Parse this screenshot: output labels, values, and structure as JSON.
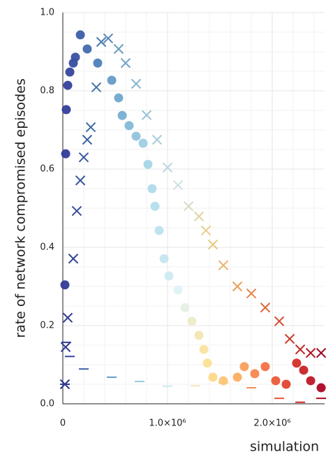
{
  "chart_data": {
    "type": "scatter",
    "ylabel": "rate of network compromised episodes",
    "xlabel": "simulation",
    "xlim": [
      0,
      2500000
    ],
    "ylim": [
      0,
      1
    ],
    "xticks": [
      0,
      {
        "value": 1000000,
        "label": "1.0×10⁶"
      },
      {
        "value": 2000000,
        "label": "2.0×10⁶"
      }
    ],
    "yticks": [
      {
        "value": 0,
        "label": "0.0"
      },
      0.2,
      0.4,
      0.6,
      0.8,
      {
        "value": 1,
        "label": "1.0"
      }
    ],
    "grid": true,
    "colormap": "RdYlBu_r",
    "series": [
      {
        "marker": "circle",
        "x": [
          20000,
          27000,
          33000,
          47000,
          67000,
          100000,
          120000,
          167000,
          233000,
          333000,
          467000,
          533000,
          567000,
          633000,
          700000,
          767000,
          813000,
          853000,
          880000,
          920000,
          967000,
          1013000,
          1100000,
          1167000,
          1233000,
          1300000,
          1347000,
          1380000,
          1433000,
          1533000,
          1667000,
          1733000,
          1833000,
          1933000,
          2033000,
          2133000,
          2233000,
          2300000,
          2367000,
          2467000
        ],
        "values": [
          0.304,
          0.639,
          0.752,
          0.814,
          0.848,
          0.871,
          0.886,
          0.943,
          0.907,
          0.871,
          0.827,
          0.782,
          0.737,
          0.711,
          0.684,
          0.666,
          0.612,
          0.55,
          0.505,
          0.443,
          0.371,
          0.327,
          0.291,
          0.246,
          0.211,
          0.175,
          0.139,
          0.104,
          0.068,
          0.059,
          0.068,
          0.095,
          0.077,
          0.095,
          0.059,
          0.05,
          0.104,
          0.086,
          0.059,
          0.041
        ]
      },
      {
        "marker": "x",
        "x": [
          20000,
          27000,
          47000,
          100000,
          133000,
          167000,
          200000,
          233000,
          267000,
          320000,
          367000,
          433000,
          533000,
          600000,
          700000,
          800000,
          900000,
          1000000,
          1100000,
          1200000,
          1300000,
          1367000,
          1433000,
          1533000,
          1667000,
          1800000,
          1933000,
          2067000,
          2167000,
          2267000,
          2367000,
          2467000
        ],
        "values": [
          0.05,
          0.145,
          0.22,
          0.371,
          0.493,
          0.571,
          0.63,
          0.675,
          0.707,
          0.809,
          0.925,
          0.934,
          0.907,
          0.871,
          0.818,
          0.738,
          0.675,
          0.604,
          0.559,
          0.505,
          0.479,
          0.443,
          0.407,
          0.354,
          0.3,
          0.282,
          0.246,
          0.211,
          0.166,
          0.139,
          0.13,
          0.13
        ]
      },
      {
        "marker": "dash",
        "x": [
          20000,
          33000,
          67000,
          200000,
          467000,
          733000,
          1000000,
          1267000,
          1533000,
          1800000,
          2067000,
          2267000,
          2467000
        ],
        "values": [
          0.05,
          0.157,
          0.121,
          0.089,
          0.068,
          0.057,
          0.045,
          0.046,
          0.054,
          0.041,
          0.014,
          0.004,
          0.014
        ]
      }
    ]
  }
}
